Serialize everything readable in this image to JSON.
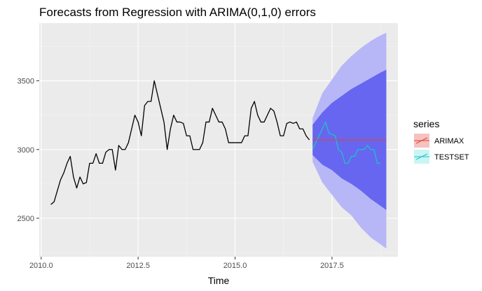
{
  "chart_data": {
    "type": "line",
    "title": "Forecasts from Regression with ARIMA(0,1,0) errors",
    "xlabel": "Time",
    "ylabel": "",
    "xlim": [
      2009.95,
      2019.2
    ],
    "ylim": [
      2220,
      3920
    ],
    "xticks": [
      2010.0,
      2012.5,
      2015.0,
      2017.5
    ],
    "xtick_labels": [
      "2010.0",
      "2012.5",
      "2015.0",
      "2017.5"
    ],
    "yticks": [
      2500,
      3000,
      3500
    ],
    "ytick_labels": [
      "2500",
      "3000",
      "3500"
    ],
    "grid": true,
    "legend": {
      "title": "series",
      "position": "right",
      "entries": [
        "ARIMAX",
        "TESTSET"
      ]
    },
    "historical": {
      "start": 2010.25,
      "step": 0.08333,
      "values": [
        2600,
        2620,
        2700,
        2780,
        2830,
        2900,
        2950,
        2800,
        2720,
        2800,
        2750,
        2760,
        2900,
        2900,
        2970,
        2900,
        2900,
        2980,
        3000,
        3000,
        2850,
        3030,
        3000,
        3000,
        3050,
        3150,
        3250,
        3200,
        3100,
        3320,
        3350,
        3350,
        3500,
        3400,
        3300,
        3200,
        3000,
        3150,
        3250,
        3200,
        3200,
        3190,
        3100,
        3100,
        3000,
        3000,
        3000,
        3050,
        3200,
        3200,
        3300,
        3250,
        3200,
        3200,
        3150,
        3050,
        3050,
        3050,
        3050,
        3050,
        3100,
        3100,
        3300,
        3350,
        3250,
        3200,
        3200,
        3250,
        3300,
        3280,
        3200,
        3100,
        3100,
        3190,
        3200,
        3190,
        3200,
        3150,
        3150,
        3100,
        3070
      ]
    },
    "forecast": {
      "name": "ARIMAX",
      "color": "#e0433a",
      "x": [
        2017.0,
        2018.9
      ],
      "values": [
        3070,
        3070
      ]
    },
    "testset": {
      "name": "TESTSET",
      "color": "#21c1c4",
      "start": 2017.0,
      "step": 0.08333,
      "values": [
        3000,
        3050,
        3100,
        3150,
        3200,
        3120,
        3110,
        3100,
        3000,
        2980,
        2900,
        2900,
        2950,
        2950,
        3000,
        3000,
        3000,
        3030,
        3000,
        3000,
        2900,
        2900
      ]
    },
    "intervals": {
      "x": [
        2017.0,
        2017.25,
        2017.5,
        2017.75,
        2018.0,
        2018.25,
        2018.5,
        2018.75,
        2018.9
      ],
      "lo80": [
        2960,
        2890,
        2850,
        2790,
        2750,
        2700,
        2640,
        2590,
        2560
      ],
      "hi80": [
        3180,
        3270,
        3340,
        3390,
        3440,
        3480,
        3520,
        3560,
        3580
      ],
      "lo95": [
        2910,
        2760,
        2670,
        2580,
        2520,
        2430,
        2360,
        2310,
        2280
      ],
      "hi95": [
        3230,
        3410,
        3510,
        3610,
        3680,
        3740,
        3790,
        3830,
        3850
      ],
      "color80": "#6666f0",
      "color95": "#b7b7f7"
    },
    "colors": {
      "panel": "#ebebeb",
      "grid_major": "#ffffff",
      "grid_minor": "#f5f5f5",
      "history_line": "#000000"
    }
  }
}
